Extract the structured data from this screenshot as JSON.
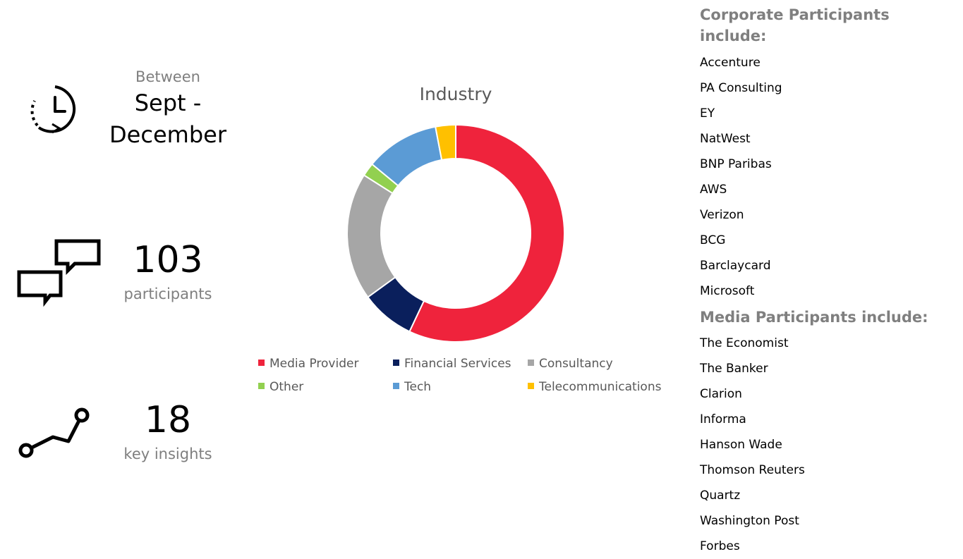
{
  "timeframe": {
    "label": "Between",
    "value_line1": "Sept -",
    "value_line2": "December",
    "icon": "clock-icon"
  },
  "participants": {
    "value": "103",
    "label": "participants",
    "icon": "chat-bubbles-icon"
  },
  "insights": {
    "value": "18",
    "label": "key insights",
    "icon": "trend-line-icon"
  },
  "chart_data": {
    "type": "pie",
    "donut": true,
    "title": "Industry",
    "categories": [
      "Media Provider",
      "Financial Services",
      "Consultancy",
      "Other",
      "Tech",
      "Telecommunications"
    ],
    "values": [
      57,
      8,
      19,
      2,
      11,
      3
    ],
    "colors": [
      "#ef233c",
      "#0a1f5c",
      "#a6a6a6",
      "#92d050",
      "#5b9bd5",
      "#ffc000"
    ],
    "legend_position": "bottom"
  },
  "corporate": {
    "heading": "Corporate Participants include:",
    "items": [
      "Accenture",
      "PA Consulting",
      "EY",
      "NatWest",
      "BNP Paribas",
      "AWS",
      "Verizon",
      "BCG",
      "Barclaycard",
      "Microsoft"
    ]
  },
  "media": {
    "heading": "Media Participants include:",
    "items": [
      "The Economist",
      "The Banker",
      "Clarion",
      "Informa",
      "Hanson Wade",
      "Thomson Reuters",
      "Quartz",
      "Washington Post",
      "Forbes"
    ]
  }
}
